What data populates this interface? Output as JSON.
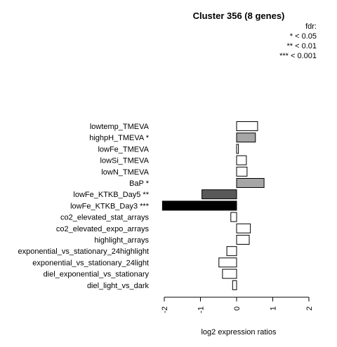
{
  "chart_data": {
    "type": "bar",
    "orientation": "horizontal",
    "title": "Cluster 356 (8 genes)",
    "xlabel": "log2 expression ratios",
    "xlim": [
      -2,
      2
    ],
    "xticks": [
      -2,
      -1,
      0,
      1,
      2
    ],
    "xtick_labels": [
      "-2",
      "-1",
      "0",
      "1",
      "2"
    ],
    "legend": {
      "title": "fdr:",
      "entries": [
        "* < 0.05",
        "** < 0.01",
        "*** < 0.001"
      ],
      "placement": "top-right"
    },
    "categories": [
      "lowtemp_TMEVA",
      "highpH_TMEVA *",
      "lowFe_TMEVA",
      "lowSi_TMEVA",
      "lowN_TMEVA",
      "BaP *",
      "lowFe_KTKB_Day5 **",
      "lowFe_KTKB_Day3 ***",
      "co2_elevated_stat_arrays",
      "co2_elevated_expo_arrays",
      "highlight_arrays",
      "exponential_vs_stationary_24highlight",
      "exponential_vs_stationary_24light",
      "diel_exponential_vs_stationary",
      "diel_light_vs_dark"
    ],
    "values": [
      0.58,
      0.52,
      0.05,
      0.27,
      0.29,
      0.76,
      -0.96,
      -2.05,
      -0.16,
      0.38,
      0.35,
      -0.27,
      -0.49,
      -0.39,
      -0.11
    ],
    "significance": [
      "",
      "*",
      "",
      "",
      "",
      "*",
      "**",
      "***",
      "",
      "",
      "",
      "",
      "",
      "",
      ""
    ],
    "colors": {
      "none": "#ffffff",
      "*": "#a6a6a6",
      "**": "#595959",
      "***": "#000000",
      "stroke": "#000000"
    }
  }
}
